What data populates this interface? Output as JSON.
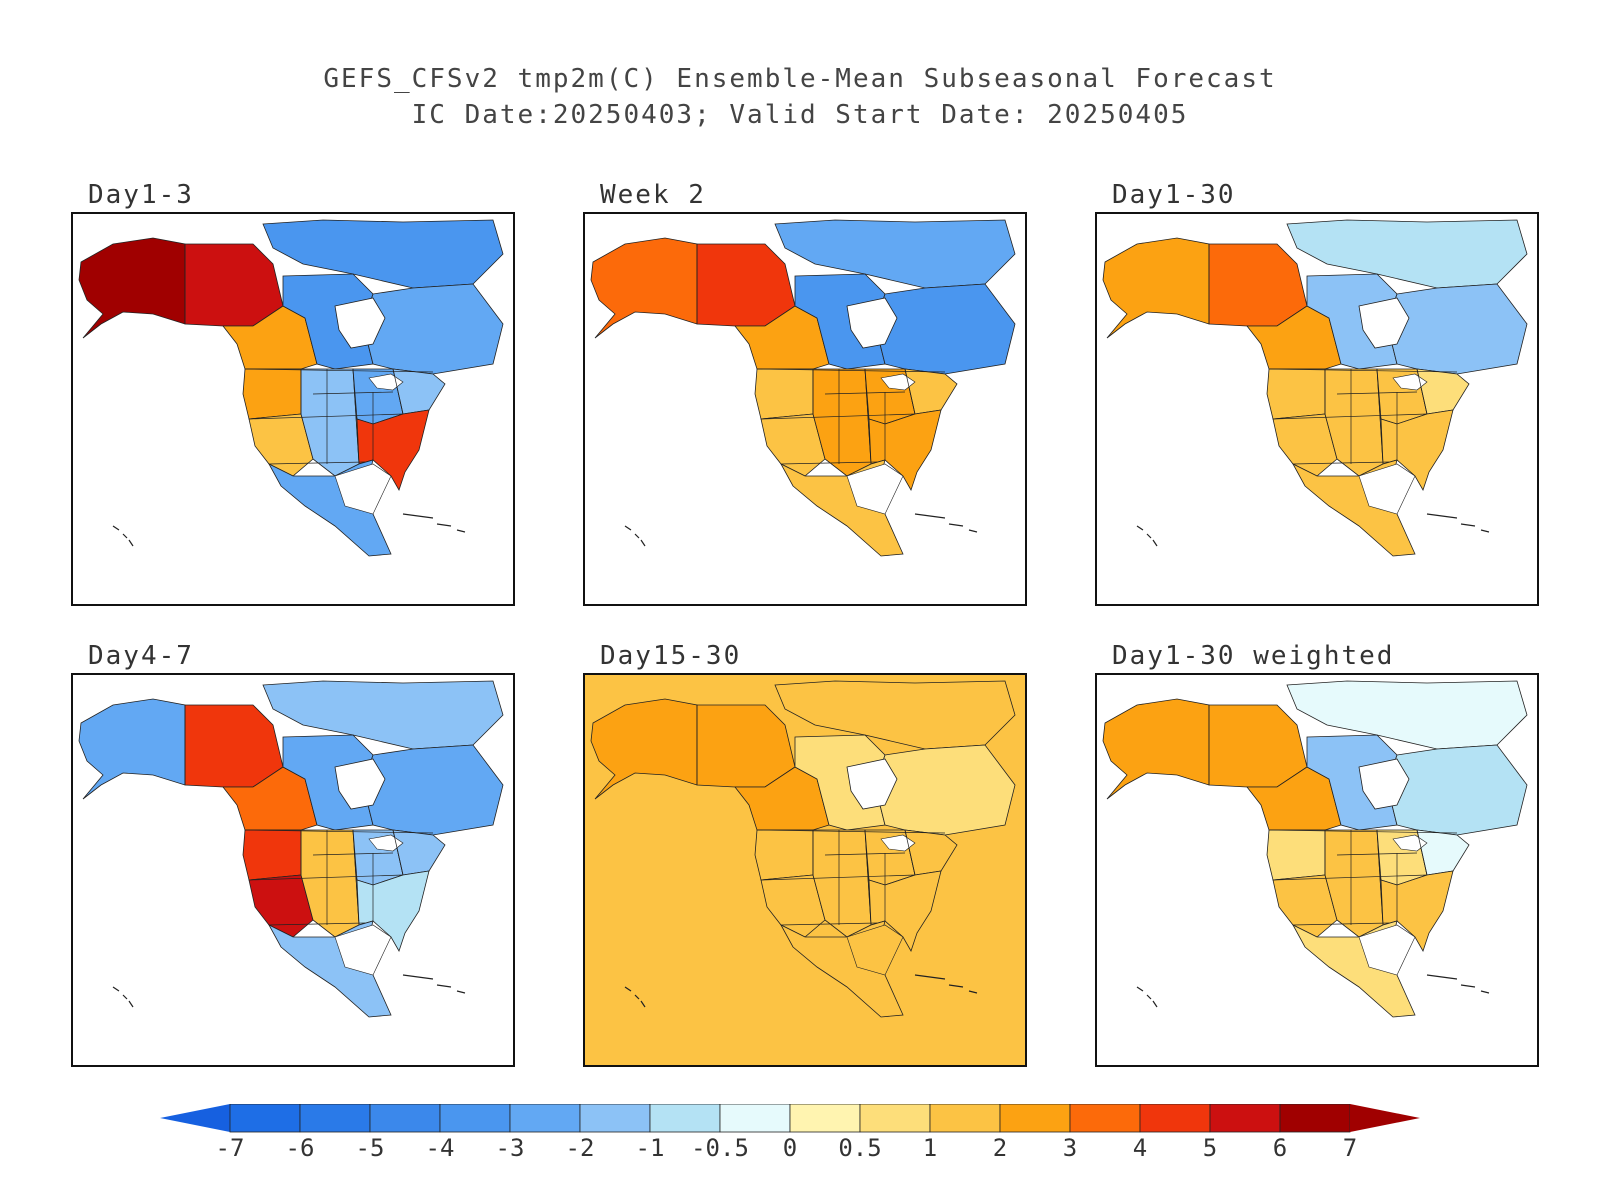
{
  "title": {
    "line1": "GEFS_CFSv2 tmp2m(C) Ensemble-Mean Subseasonal Forecast",
    "line2": "IC Date:20250403; Valid Start Date: 20250405"
  },
  "panels": [
    {
      "id": "day1-3",
      "label": "Day1-3",
      "anomaly": {
        "alaska": 6,
        "yukon": 5.5,
        "west_canada": 2.5,
        "hudson": -4,
        "quebec": -3,
        "arctic": -3.5,
        "pacific_nw": 2.5,
        "southwest": 1,
        "plains": -2,
        "midwest": -3,
        "northeast": -2,
        "southeast": 4.5,
        "mexico": -2.5,
        "ocean": null
      }
    },
    {
      "id": "week2",
      "label": "Week 2",
      "anomaly": {
        "alaska": 3,
        "yukon": 4,
        "west_canada": 2.5,
        "hudson": -3.5,
        "quebec": -3.5,
        "arctic": -3,
        "pacific_nw": 1,
        "southwest": 1.5,
        "plains": 2,
        "midwest": 2,
        "northeast": 1.5,
        "southeast": 2,
        "mexico": 1,
        "ocean": null
      }
    },
    {
      "id": "day1-30",
      "label": "Day1-30",
      "anomaly": {
        "alaska": 2.5,
        "yukon": 3,
        "west_canada": 2,
        "hudson": -1.5,
        "quebec": -1.5,
        "arctic": -1,
        "pacific_nw": 1,
        "southwest": 1.5,
        "plains": 1.5,
        "midwest": 1,
        "northeast": 0.5,
        "southeast": 1.5,
        "mexico": 1,
        "ocean": null
      }
    },
    {
      "id": "day4-7",
      "label": "Day4-7",
      "anomaly": {
        "alaska": -2.5,
        "yukon": 4.5,
        "west_canada": 3.5,
        "hudson": -3,
        "quebec": -3,
        "arctic": -2,
        "pacific_nw": 4.5,
        "southwest": 5,
        "plains": 1,
        "midwest": -2,
        "northeast": -1.5,
        "southeast": -1,
        "mexico": -2,
        "ocean": null
      }
    },
    {
      "id": "day15-30",
      "label": "Day15-30",
      "anomaly": {
        "alaska": 2.5,
        "yukon": 2.5,
        "west_canada": 2,
        "hudson": 0.5,
        "quebec": 0.5,
        "arctic": 1,
        "pacific_nw": 1,
        "southwest": 1.5,
        "plains": 1.5,
        "midwest": 1,
        "northeast": 1,
        "southeast": 1.5,
        "mexico": 1.5,
        "ocean": 1.5
      }
    },
    {
      "id": "day1-30-weighted",
      "label": "Day1-30 weighted",
      "anomaly": {
        "alaska": 2,
        "yukon": 2.5,
        "west_canada": 2,
        "hudson": -1.5,
        "quebec": -1,
        "arctic": -0.5,
        "pacific_nw": 0.5,
        "southwest": 1,
        "plains": 1,
        "midwest": 0.5,
        "northeast": -0.5,
        "southeast": 1,
        "mexico": 0.5,
        "ocean": null
      }
    }
  ],
  "colorbar": {
    "labels": [
      "-7",
      "-6",
      "-5",
      "-4",
      "-3",
      "-2",
      "-1",
      "-0.5",
      "0",
      "0.5",
      "1",
      "2",
      "3",
      "4",
      "5",
      "6",
      "7"
    ],
    "thresholds": [
      -7,
      -6,
      -5,
      -4,
      -3,
      -2,
      -1,
      -0.5,
      0,
      0.5,
      1,
      2,
      3,
      4,
      5,
      6,
      7
    ],
    "colors": [
      "#1e6ee6",
      "#2a7ae8",
      "#3b88eb",
      "#4a96ef",
      "#62a8f3",
      "#8cc2f6",
      "#b4e2f4",
      "#e6fafc",
      "#fff4b0",
      "#fdde7a",
      "#fcc344",
      "#fca212",
      "#fc6a0a",
      "#f0360c",
      "#cc1010",
      "#a00000"
    ],
    "low_color": "#1660e0",
    "high_color": "#a00000"
  }
}
